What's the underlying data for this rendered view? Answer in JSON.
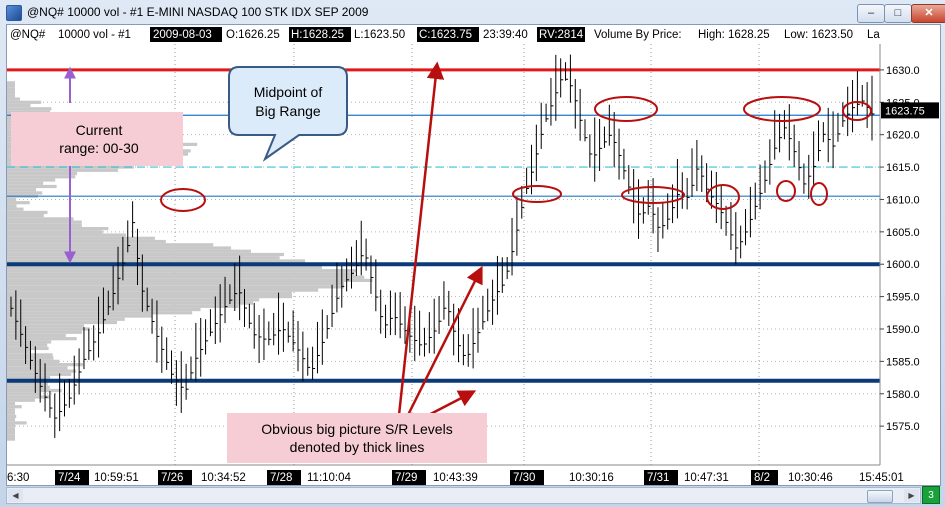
{
  "window": {
    "title": "@NQ#  10000 vol - #1 E-MINI NASDAQ 100 STK IDX SEP 2009",
    "minimize": "–",
    "maximize": "□",
    "close": "✕"
  },
  "header": {
    "symbol": "@NQ#",
    "interval": "10000 vol - #1",
    "date": "2009-08-03",
    "open": "O:1626.25",
    "high": "H:1628.25",
    "low": "L:1623.50",
    "close": "C:1623.75",
    "time": "23:39:40",
    "rv": "RV:2814",
    "vbp": "Volume By Price:",
    "vbp_high": "High: 1628.25",
    "vbp_low": "Low: 1623.50",
    "trunc": "La"
  },
  "annotations": {
    "current_range": [
      "Current",
      "range: 00-30"
    ],
    "midpoint": [
      "Midpoint of",
      "Big Range"
    ],
    "sr_levels": [
      "Obvious big picture S/R Levels",
      "denoted by thick lines"
    ]
  },
  "corner_badge": "3",
  "colors": {
    "bars": "#000000",
    "profile": "#c8c8c8",
    "red_line": "#e01a1a",
    "thick_line": "#0b3a78",
    "blue_line": "#1f78c8",
    "midpoint_line": "#33c5d8",
    "ellipse": "#b80e0e",
    "arrow": "#b80e0e",
    "purple_arrow": "#9a5fd0",
    "pink_box": "#f6cdd4",
    "callout": "#dcebfa"
  },
  "chart_data": {
    "type": "ohlc",
    "title": "@NQ# 10000 vol - #1 E-MINI NASDAQ 100 STK IDX SEP 2009",
    "ylabel": "",
    "ylim": [
      1569,
      1634
    ],
    "y_ticks": [
      1575,
      1580,
      1585,
      1590,
      1595,
      1600,
      1605,
      1610,
      1615,
      1620,
      1625,
      1630
    ],
    "last_price": "1623.75",
    "x_labels": [
      {
        "text": "6:30",
        "inverted": false
      },
      {
        "text": "7/24",
        "inverted": true
      },
      {
        "text": "10:59:51",
        "inverted": false
      },
      {
        "text": "7/26",
        "inverted": true
      },
      {
        "text": "10:34:52",
        "inverted": false
      },
      {
        "text": "7/28",
        "inverted": true
      },
      {
        "text": "11:10:04",
        "inverted": false
      },
      {
        "text": "7/29",
        "inverted": true
      },
      {
        "text": "10:43:39",
        "inverted": false
      },
      {
        "text": "7/30",
        "inverted": true
      },
      {
        "text": "10:30:16",
        "inverted": false
      },
      {
        "text": "7/31",
        "inverted": true
      },
      {
        "text": "10:47:31",
        "inverted": false
      },
      {
        "text": "8/2",
        "inverted": true
      },
      {
        "text": "10:30:46",
        "inverted": false
      },
      {
        "text": "15:45:01",
        "inverted": false
      }
    ],
    "levels": {
      "red": 1630,
      "thick": [
        1600,
        1582
      ],
      "blue": [
        1623,
        1610.5
      ],
      "midpoint": 1615
    },
    "price_path": [
      [
        0,
        1594
      ],
      [
        3,
        1588
      ],
      [
        6,
        1582
      ],
      [
        9,
        1577
      ],
      [
        12,
        1580
      ],
      [
        15,
        1586
      ],
      [
        18,
        1590
      ],
      [
        21,
        1596
      ],
      [
        24,
        1603
      ],
      [
        25,
        1608
      ],
      [
        27,
        1597
      ],
      [
        30,
        1590
      ],
      [
        33,
        1584
      ],
      [
        36,
        1581
      ],
      [
        38,
        1586
      ],
      [
        41,
        1590
      ],
      [
        44,
        1594
      ],
      [
        47,
        1597
      ],
      [
        50,
        1590
      ],
      [
        53,
        1589
      ],
      [
        56,
        1591
      ],
      [
        59,
        1588
      ],
      [
        62,
        1584
      ],
      [
        65,
        1590
      ],
      [
        68,
        1597
      ],
      [
        71,
        1600
      ],
      [
        73,
        1603
      ],
      [
        75,
        1597
      ],
      [
        77,
        1591
      ],
      [
        79,
        1593
      ],
      [
        82,
        1590
      ],
      [
        85,
        1588
      ],
      [
        88,
        1591
      ],
      [
        90,
        1595
      ],
      [
        92,
        1589
      ],
      [
        94,
        1586
      ],
      [
        97,
        1591
      ],
      [
        100,
        1596
      ],
      [
        102,
        1598
      ],
      [
        104,
        1604
      ],
      [
        106,
        1611
      ],
      [
        108,
        1616
      ],
      [
        110,
        1622
      ],
      [
        112,
        1626
      ],
      [
        114,
        1630
      ],
      [
        116,
        1628
      ],
      [
        118,
        1622
      ],
      [
        120,
        1617
      ],
      [
        122,
        1619
      ],
      [
        124,
        1621
      ],
      [
        126,
        1617
      ],
      [
        128,
        1612
      ],
      [
        130,
        1608
      ],
      [
        132,
        1610
      ],
      [
        134,
        1606
      ],
      [
        136,
        1608
      ],
      [
        138,
        1612
      ],
      [
        140,
        1611
      ],
      [
        142,
        1616
      ],
      [
        144,
        1612
      ],
      [
        146,
        1610
      ],
      [
        148,
        1607
      ],
      [
        150,
        1603
      ],
      [
        152,
        1606
      ],
      [
        154,
        1610
      ],
      [
        156,
        1614
      ],
      [
        158,
        1619
      ],
      [
        160,
        1622
      ],
      [
        162,
        1618
      ],
      [
        164,
        1613
      ],
      [
        166,
        1616
      ],
      [
        168,
        1621
      ],
      [
        170,
        1619
      ],
      [
        172,
        1623
      ],
      [
        174,
        1625
      ],
      [
        176,
        1626
      ],
      [
        178,
        1624
      ]
    ]
  }
}
